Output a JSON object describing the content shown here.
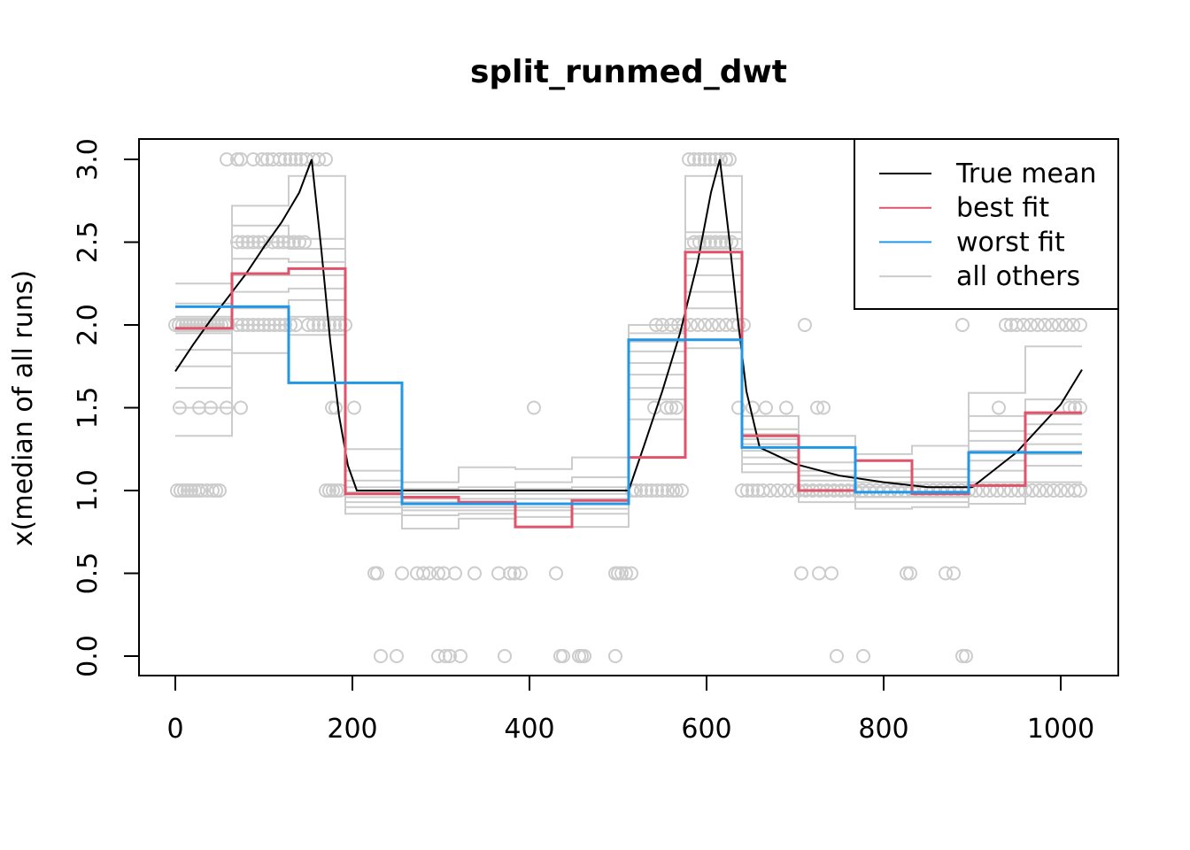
{
  "chart_data": {
    "type": "line",
    "title": "split_runmed_dwt",
    "xlabel": "",
    "ylabel": "x(median of all runs)",
    "xlim": [
      -20,
      1065
    ],
    "ylim": [
      -0.12,
      3.12
    ],
    "x_ticks": [
      0,
      200,
      400,
      600,
      800,
      1000
    ],
    "x_tick_labels": [
      "0",
      "200",
      "400",
      "600",
      "800",
      "1000"
    ],
    "y_ticks": [
      0,
      0.5,
      1,
      1.5,
      2,
      2.5,
      3
    ],
    "y_tick_labels": [
      "0.0",
      "0.5",
      "1.0",
      "1.5",
      "2.0",
      "2.5",
      "3.0"
    ],
    "grid": false,
    "legend_position": "top-right",
    "colors": {
      "true_mean": "#000000",
      "best_fit": "#DF536B",
      "worst_fit": "#2297E6",
      "others": "#CCCCCC"
    },
    "legend": [
      {
        "key": "true_mean",
        "label": "True mean"
      },
      {
        "key": "best_fit",
        "label": "best fit"
      },
      {
        "key": "worst_fit",
        "label": "worst fit"
      },
      {
        "key": "others",
        "label": "all others"
      }
    ],
    "true_mean": {
      "x": [
        0,
        20,
        40,
        60,
        80,
        100,
        120,
        140,
        154,
        165,
        175,
        185,
        195,
        205,
        256,
        320,
        384,
        448,
        512,
        530,
        550,
        570,
        590,
        605,
        615,
        625,
        635,
        645,
        660,
        700,
        750,
        800,
        850,
        900,
        950,
        1000,
        1024
      ],
      "y": [
        1.72,
        1.88,
        2.03,
        2.17,
        2.31,
        2.47,
        2.62,
        2.8,
        3.0,
        2.45,
        1.9,
        1.45,
        1.15,
        1.0,
        1.0,
        1.0,
        1.0,
        1.0,
        1.0,
        1.28,
        1.6,
        1.95,
        2.38,
        2.8,
        3.0,
        2.55,
        2.05,
        1.6,
        1.26,
        1.16,
        1.09,
        1.05,
        1.02,
        1.02,
        1.23,
        1.52,
        1.73
      ]
    },
    "best_fit": {
      "breaks": [
        0,
        64,
        128,
        192,
        256,
        320,
        384,
        448,
        512,
        576,
        640,
        704,
        768,
        832,
        896,
        960,
        1024
      ],
      "values": [
        1.98,
        2.31,
        2.34,
        0.98,
        0.96,
        0.93,
        0.78,
        0.94,
        1.2,
        2.44,
        1.33,
        1.0,
        1.18,
        0.98,
        1.03,
        1.47
      ]
    },
    "worst_fit": {
      "breaks": [
        0,
        128,
        256,
        512,
        640,
        768,
        896,
        1024
      ],
      "values": [
        2.11,
        1.65,
        0.92,
        1.91,
        1.26,
        0.99,
        1.23
      ]
    },
    "others": {
      "breaks": [
        0,
        64,
        128,
        192,
        256,
        320,
        384,
        448,
        512,
        576,
        640,
        704,
        768,
        832,
        896,
        960,
        1024
      ],
      "runs": [
        [
          1.33,
          1.83,
          1.94,
          0.86,
          0.77,
          0.83,
          0.84,
          0.78,
          1.43,
          1.86,
          1.11,
          0.93,
          0.89,
          0.9,
          0.92,
          1.05
        ],
        [
          1.5,
          2.0,
          2.05,
          0.9,
          0.85,
          0.86,
          0.88,
          0.86,
          1.55,
          2.1,
          1.16,
          0.97,
          0.93,
          0.93,
          1.05,
          1.15
        ],
        [
          1.62,
          2.1,
          2.15,
          0.93,
          0.88,
          0.88,
          0.9,
          0.89,
          1.62,
          2.2,
          1.2,
          1.0,
          0.96,
          0.96,
          1.12,
          1.22
        ],
        [
          1.75,
          2.2,
          2.22,
          0.96,
          0.9,
          0.9,
          0.92,
          0.92,
          1.7,
          2.3,
          1.24,
          1.03,
          0.99,
          0.99,
          1.18,
          1.28
        ],
        [
          1.85,
          2.3,
          2.3,
          0.99,
          0.93,
          0.92,
          0.95,
          0.95,
          1.77,
          2.4,
          1.28,
          1.06,
          1.02,
          1.02,
          1.24,
          1.34
        ],
        [
          1.95,
          2.4,
          2.38,
          1.02,
          0.95,
          0.95,
          0.98,
          0.98,
          1.84,
          2.46,
          1.31,
          1.09,
          1.05,
          1.05,
          1.3,
          1.4
        ],
        [
          2.05,
          2.5,
          2.46,
          1.06,
          0.98,
          0.98,
          1.01,
          1.02,
          1.9,
          2.52,
          1.34,
          1.12,
          1.08,
          1.08,
          1.36,
          1.46
        ],
        [
          2.13,
          2.6,
          2.52,
          1.12,
          1.01,
          1.02,
          1.05,
          1.08,
          1.95,
          2.56,
          1.37,
          1.17,
          1.12,
          1.13,
          1.45,
          1.55
        ],
        [
          2.25,
          2.72,
          2.9,
          1.25,
          1.05,
          1.14,
          1.13,
          1.2,
          2.0,
          2.9,
          1.45,
          1.33,
          1.22,
          1.27,
          1.59,
          1.87
        ]
      ]
    },
    "points": {
      "y0": [
        232,
        250,
        297,
        305,
        310,
        322,
        372,
        435,
        438,
        456,
        459,
        462,
        497,
        747,
        777,
        889,
        893
      ],
      "y05": [
        225,
        228,
        256,
        273,
        280,
        287,
        297,
        303,
        316,
        338,
        365,
        378,
        383,
        390,
        430,
        497,
        500,
        504,
        509,
        515,
        707,
        727,
        741,
        826,
        830,
        870,
        879
      ],
      "y1": [
        2,
        6,
        10,
        14,
        18,
        22,
        26,
        30,
        36,
        42,
        46,
        50,
        170,
        174,
        178,
        182,
        186,
        516,
        520,
        526,
        532,
        538,
        544,
        550,
        556,
        562,
        566,
        572,
        640,
        646,
        652,
        658,
        664,
        672,
        680,
        688,
        696,
        704,
        712,
        720,
        728,
        736,
        744,
        752,
        760,
        768,
        776,
        784,
        792,
        800,
        808,
        816,
        824,
        832,
        840,
        848,
        856,
        864,
        872,
        880,
        888,
        896,
        904,
        912,
        920,
        928,
        936,
        944,
        952,
        960,
        968,
        976,
        984,
        992,
        1000,
        1008,
        1016,
        1022
      ],
      "y15": [
        5,
        27,
        40,
        58,
        74,
        177,
        181,
        202,
        405,
        541,
        555,
        560,
        566,
        636,
        652,
        667,
        690,
        725,
        732,
        930,
        1010,
        1016,
        1022
      ],
      "y2": [
        0,
        4,
        8,
        12,
        16,
        20,
        24,
        28,
        32,
        36,
        40,
        44,
        48,
        52,
        56,
        60,
        70,
        76,
        82,
        88,
        94,
        100,
        106,
        112,
        118,
        124,
        130,
        136,
        150,
        156,
        162,
        168,
        174,
        180,
        186,
        192,
        543,
        550,
        560,
        568,
        574,
        582,
        590,
        598,
        606,
        614,
        622,
        630,
        636,
        642,
        711,
        889,
        938,
        944,
        950,
        958,
        966,
        974,
        982,
        990,
        998,
        1006,
        1014,
        1022
      ],
      "y25": [
        70,
        76,
        82,
        88,
        94,
        100,
        110,
        116,
        122,
        128,
        134,
        140,
        146,
        586,
        592,
        598,
        604,
        610,
        616,
        622,
        628
      ],
      "y3": [
        58,
        70,
        74,
        88,
        98,
        104,
        110,
        118,
        124,
        130,
        136,
        142,
        148,
        156,
        162,
        170,
        580,
        586,
        592,
        598,
        604,
        610,
        616,
        622,
        626
      ]
    }
  }
}
